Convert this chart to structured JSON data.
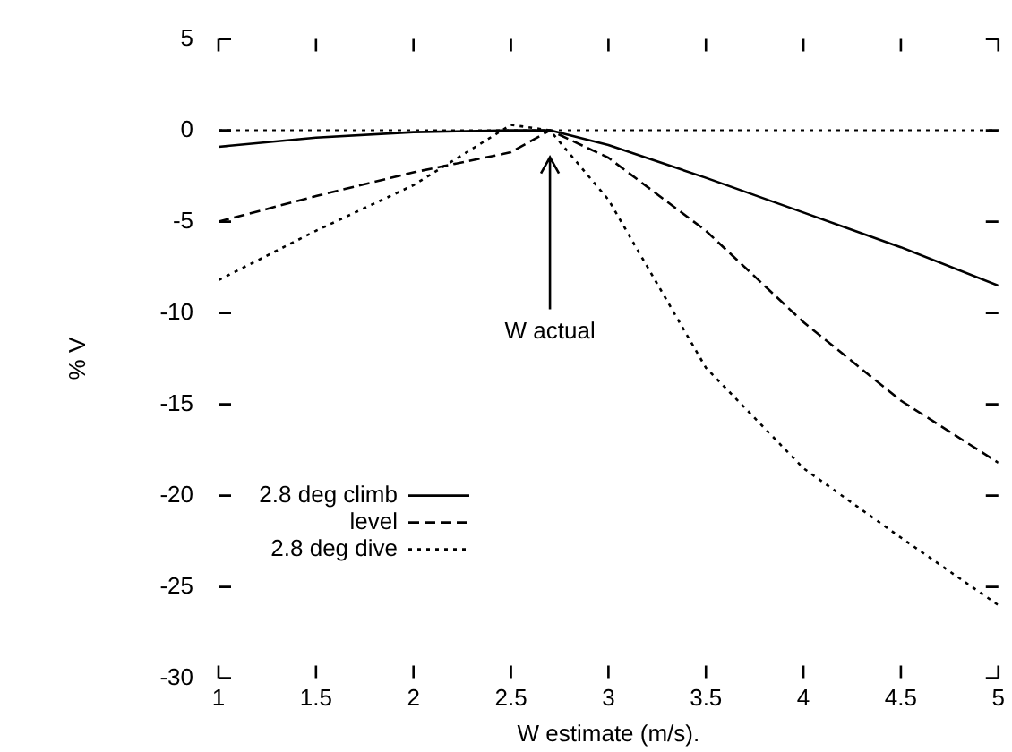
{
  "chart_data": {
    "type": "line",
    "xlabel": "W estimate (m/s).",
    "ylabel": "% V",
    "x": [
      1,
      1.5,
      2,
      2.5,
      2.7,
      3,
      3.5,
      4,
      4.5,
      5
    ],
    "series": [
      {
        "name": "2.8 deg climb",
        "color": "#000000",
        "line_style": "solid",
        "values": [
          -0.9,
          -0.4,
          -0.1,
          0,
          0,
          -0.8,
          -2.6,
          -4.5,
          -6.4,
          -8.5
        ]
      },
      {
        "name": "level",
        "color": "#000000",
        "line_style": "dashed",
        "values": [
          -5,
          -3.6,
          -2.3,
          -1.2,
          0,
          -1.5,
          -5.5,
          -10.5,
          -14.8,
          -18.2
        ]
      },
      {
        "name": "2.8 deg dive",
        "color": "#000000",
        "line_style": "dotted",
        "values": [
          -8.2,
          -5.5,
          -3,
          0.3,
          0,
          -3.8,
          -13,
          -18.5,
          -22.3,
          -26
        ]
      }
    ],
    "xlim": [
      1,
      5
    ],
    "xticks": [
      1,
      1.5,
      2,
      2.5,
      3,
      3.5,
      4,
      4.5,
      5
    ],
    "ylim": [
      -30,
      5
    ],
    "yticks": [
      -30,
      -25,
      -20,
      -15,
      -10,
      -5,
      0,
      5
    ],
    "ref_lines": [
      {
        "axis": "y",
        "value": 0,
        "line_style": "dotted",
        "color": "#000000"
      }
    ],
    "annotations": [
      "W actual"
    ],
    "legend": "bottom left",
    "marker": "none",
    "grid": false
  }
}
